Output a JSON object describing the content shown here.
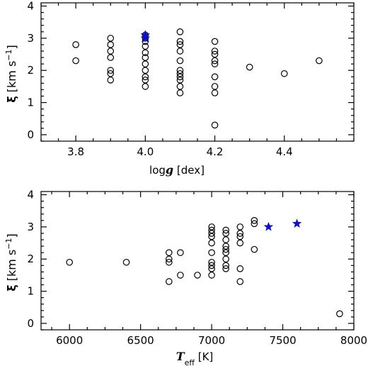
{
  "chart_data": [
    {
      "type": "scatter",
      "title": "",
      "xlabel": "log g [dex]",
      "xlabel_parts": {
        "main": "log",
        "italic": "g",
        "unit": " [dex]"
      },
      "ylabel": "ξ [km s⁻¹]",
      "xlim": [
        3.7,
        4.6
      ],
      "ylim": [
        -0.2,
        4.1
      ],
      "xticks": [
        3.8,
        4.0,
        4.2,
        4.4
      ],
      "xtick_labels": [
        "3.8",
        "4.0",
        "4.2",
        "4.4"
      ],
      "yticks": [
        0,
        1,
        2,
        3,
        4
      ],
      "ytick_labels": [
        "0",
        "1",
        "2",
        "3",
        "4"
      ],
      "grid": false,
      "series": [
        {
          "marker": "circle",
          "color": "#000000",
          "points": [
            [
              3.8,
              2.8
            ],
            [
              3.8,
              2.3
            ],
            [
              3.9,
              3.0
            ],
            [
              3.9,
              2.8
            ],
            [
              3.9,
              2.6
            ],
            [
              3.9,
              2.4
            ],
            [
              3.9,
              2.0
            ],
            [
              3.9,
              1.9
            ],
            [
              3.9,
              1.7
            ],
            [
              4.0,
              3.1
            ],
            [
              4.0,
              3.0
            ],
            [
              4.0,
              2.9
            ],
            [
              4.0,
              2.75
            ],
            [
              4.0,
              2.55
            ],
            [
              4.0,
              2.4
            ],
            [
              4.0,
              2.2
            ],
            [
              4.0,
              2.0
            ],
            [
              4.0,
              1.8
            ],
            [
              4.0,
              1.7
            ],
            [
              4.0,
              1.5
            ],
            [
              4.1,
              3.2
            ],
            [
              4.1,
              2.9
            ],
            [
              4.1,
              2.8
            ],
            [
              4.1,
              2.6
            ],
            [
              4.1,
              2.3
            ],
            [
              4.1,
              2.0
            ],
            [
              4.1,
              1.9
            ],
            [
              4.1,
              1.8
            ],
            [
              4.1,
              1.7
            ],
            [
              4.1,
              1.5
            ],
            [
              4.1,
              1.3
            ],
            [
              4.2,
              2.9
            ],
            [
              4.2,
              2.6
            ],
            [
              4.2,
              2.5
            ],
            [
              4.2,
              2.3
            ],
            [
              4.2,
              2.2
            ],
            [
              4.2,
              1.8
            ],
            [
              4.2,
              1.5
            ],
            [
              4.2,
              1.3
            ],
            [
              4.2,
              0.3
            ],
            [
              4.3,
              2.1
            ],
            [
              4.4,
              1.9
            ],
            [
              4.5,
              2.3
            ]
          ]
        },
        {
          "marker": "star",
          "color": "#1010c8",
          "points": [
            [
              4.0,
              3.1
            ],
            [
              4.0,
              3.0
            ]
          ]
        }
      ]
    },
    {
      "type": "scatter",
      "title": "",
      "xlabel": "T_eff [K]",
      "xlabel_parts": {
        "italic": "T",
        "sub": "eff",
        "unit": "  [K]"
      },
      "ylabel": "ξ [km s⁻¹]",
      "xlim": [
        5800,
        8000
      ],
      "ylim": [
        -0.2,
        4.1
      ],
      "xticks": [
        6000,
        6500,
        7000,
        7500,
        8000
      ],
      "xtick_labels": [
        "6000",
        "6500",
        "7000",
        "7500",
        "8000"
      ],
      "yticks": [
        0,
        1,
        2,
        3,
        4
      ],
      "ytick_labels": [
        "0",
        "1",
        "2",
        "3",
        "4"
      ],
      "grid": false,
      "series": [
        {
          "marker": "circle",
          "color": "#000000",
          "points": [
            [
              6000,
              1.9
            ],
            [
              6400,
              1.9
            ],
            [
              6700,
              2.2
            ],
            [
              6700,
              2.0
            ],
            [
              6700,
              1.9
            ],
            [
              6700,
              1.3
            ],
            [
              6780,
              2.2
            ],
            [
              6780,
              1.5
            ],
            [
              6900,
              1.5
            ],
            [
              7000,
              3.0
            ],
            [
              7000,
              2.9
            ],
            [
              7000,
              2.8
            ],
            [
              7000,
              2.7
            ],
            [
              7000,
              2.5
            ],
            [
              7000,
              2.2
            ],
            [
              7000,
              1.9
            ],
            [
              7000,
              1.8
            ],
            [
              7000,
              1.7
            ],
            [
              7000,
              1.5
            ],
            [
              7100,
              2.9
            ],
            [
              7100,
              2.8
            ],
            [
              7100,
              2.6
            ],
            [
              7100,
              2.4
            ],
            [
              7100,
              2.3
            ],
            [
              7100,
              2.2
            ],
            [
              7100,
              2.0
            ],
            [
              7100,
              1.8
            ],
            [
              7100,
              1.7
            ],
            [
              7200,
              3.0
            ],
            [
              7200,
              2.8
            ],
            [
              7200,
              2.7
            ],
            [
              7200,
              2.5
            ],
            [
              7200,
              1.7
            ],
            [
              7200,
              1.3
            ],
            [
              7300,
              3.2
            ],
            [
              7300,
              3.1
            ],
            [
              7300,
              2.3
            ],
            [
              7900,
              0.3
            ]
          ]
        },
        {
          "marker": "star",
          "color": "#1010c8",
          "points": [
            [
              7400,
              3.0
            ],
            [
              7600,
              3.1
            ]
          ]
        }
      ]
    }
  ]
}
